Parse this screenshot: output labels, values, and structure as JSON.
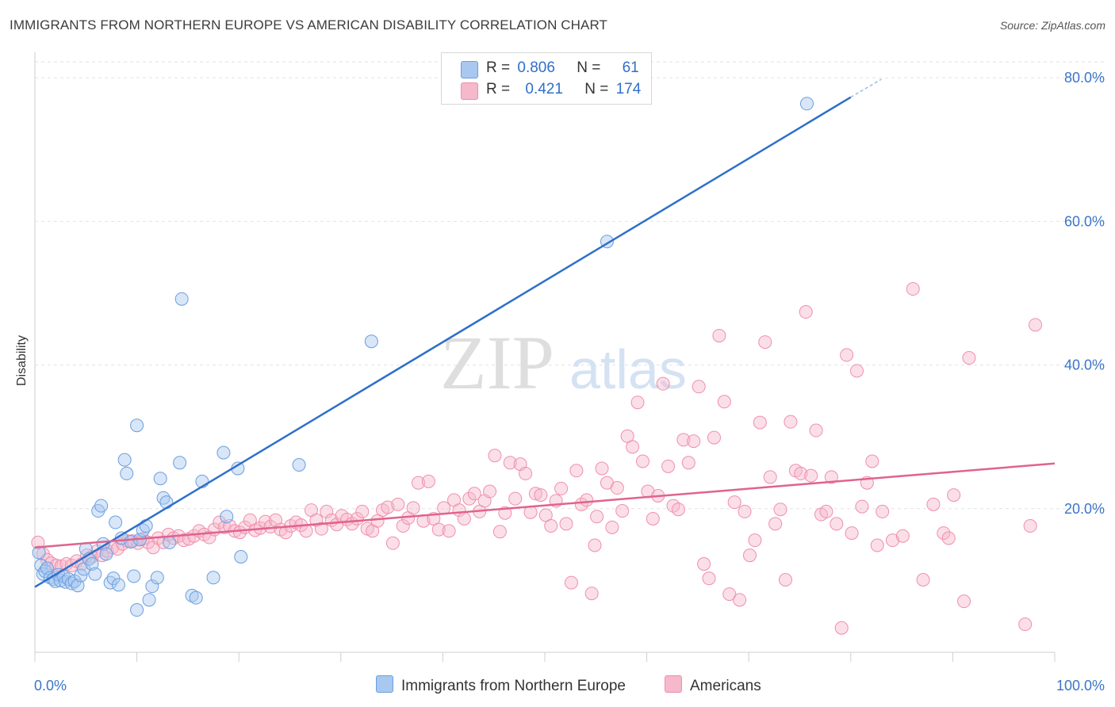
{
  "header": {
    "title": "IMMIGRANTS FROM NORTHERN EUROPE VS AMERICAN DISABILITY CORRELATION CHART",
    "source": "Source: ZipAtlas.com"
  },
  "watermark": {
    "zip": "ZIP",
    "atlas": "atlas"
  },
  "legend": {
    "rows": [
      {
        "r_label": "R =",
        "r_value": "0.806",
        "n_label": "N =",
        "n_value": "61",
        "color": "#a8c8f0"
      },
      {
        "r_label": "R =",
        "r_value": "0.421",
        "n_label": "N =",
        "n_value": "174",
        "color": "#f6b8cb"
      }
    ]
  },
  "chart_data": {
    "type": "scatter",
    "title": "IMMIGRANTS FROM NORTHERN EUROPE VS AMERICAN DISABILITY CORRELATION CHART",
    "xlabel": "",
    "ylabel": "Disability",
    "xlim": [
      0,
      100
    ],
    "ylim": [
      0,
      83
    ],
    "x_tick_labels": [
      "0.0%",
      "100.0%"
    ],
    "y_ticks": [
      20,
      40,
      60,
      80
    ],
    "y_tick_labels": [
      "20.0%",
      "40.0%",
      "60.0%",
      "80.0%"
    ],
    "grid": true,
    "legend_position": "top-center",
    "series": [
      {
        "name": "Immigrants from Northern Europe",
        "color": "#6a9fe0",
        "fill": "#a8c8f0",
        "line_color": "#2f6fc9",
        "trend": {
          "x0": 0,
          "y0": 9.1,
          "x1": 80,
          "y1": 77.3,
          "dash_to_x": 83,
          "dash_to_y": 79.8
        },
        "points": [
          [
            0.4,
            13.9
          ],
          [
            0.6,
            12.1
          ],
          [
            0.8,
            10.9
          ],
          [
            1.0,
            11.3
          ],
          [
            1.2,
            11.7
          ],
          [
            1.5,
            10.4
          ],
          [
            1.8,
            10.2
          ],
          [
            2.0,
            9.9
          ],
          [
            2.3,
            10.8
          ],
          [
            2.5,
            10.0
          ],
          [
            2.8,
            10.6
          ],
          [
            3.0,
            9.8
          ],
          [
            3.3,
            10.2
          ],
          [
            3.6,
            9.6
          ],
          [
            3.9,
            9.9
          ],
          [
            4.2,
            9.3
          ],
          [
            4.5,
            10.7
          ],
          [
            4.8,
            11.6
          ],
          [
            5.0,
            14.4
          ],
          [
            5.3,
            13.0
          ],
          [
            5.6,
            12.3
          ],
          [
            5.9,
            10.9
          ],
          [
            6.2,
            19.7
          ],
          [
            6.5,
            20.4
          ],
          [
            6.7,
            15.1
          ],
          [
            7.0,
            13.7
          ],
          [
            7.4,
            9.7
          ],
          [
            7.7,
            10.3
          ],
          [
            7.9,
            18.1
          ],
          [
            8.2,
            9.4
          ],
          [
            8.5,
            15.9
          ],
          [
            8.8,
            26.8
          ],
          [
            9.0,
            24.9
          ],
          [
            9.4,
            15.4
          ],
          [
            9.7,
            10.6
          ],
          [
            10.0,
            31.6
          ],
          [
            10.3,
            15.7
          ],
          [
            10.6,
            17.0
          ],
          [
            10.9,
            17.6
          ],
          [
            11.2,
            7.3
          ],
          [
            11.5,
            9.2
          ],
          [
            12.3,
            24.2
          ],
          [
            12.6,
            21.5
          ],
          [
            12.9,
            20.9
          ],
          [
            13.2,
            15.3
          ],
          [
            14.2,
            26.4
          ],
          [
            14.4,
            49.2
          ],
          [
            15.4,
            7.9
          ],
          [
            15.8,
            7.6
          ],
          [
            16.4,
            23.8
          ],
          [
            17.5,
            10.4
          ],
          [
            18.5,
            27.8
          ],
          [
            18.8,
            18.9
          ],
          [
            19.9,
            25.6
          ],
          [
            20.2,
            13.3
          ],
          [
            25.9,
            26.1
          ],
          [
            33.0,
            43.3
          ],
          [
            56.1,
            57.2
          ],
          [
            75.7,
            76.4
          ],
          [
            10.0,
            5.9
          ],
          [
            12.0,
            10.4
          ]
        ]
      },
      {
        "name": "Americans",
        "color": "#ef8fab",
        "fill": "#f6b8cb",
        "line_color": "#e0638e",
        "trend": {
          "x0": 0,
          "y0": 14.6,
          "x1": 100,
          "y1": 26.3
        },
        "points": [
          [
            0.3,
            15.3
          ],
          [
            0.8,
            13.7
          ],
          [
            1.2,
            12.9
          ],
          [
            1.6,
            12.4
          ],
          [
            2.1,
            12.1
          ],
          [
            2.6,
            12.0
          ],
          [
            3.1,
            12.3
          ],
          [
            3.6,
            12.1
          ],
          [
            4.1,
            12.7
          ],
          [
            4.6,
            12.3
          ],
          [
            5.1,
            13.5
          ],
          [
            5.6,
            13.3
          ],
          [
            6.1,
            14.1
          ],
          [
            6.6,
            13.5
          ],
          [
            7.1,
            14.1
          ],
          [
            7.6,
            14.6
          ],
          [
            8.1,
            14.4
          ],
          [
            8.6,
            15.1
          ],
          [
            9.1,
            15.5
          ],
          [
            9.6,
            15.5
          ],
          [
            10.1,
            15.2
          ],
          [
            10.6,
            15.8
          ],
          [
            11.1,
            15.3
          ],
          [
            11.6,
            14.6
          ],
          [
            12.1,
            15.9
          ],
          [
            12.6,
            15.3
          ],
          [
            13.1,
            16.4
          ],
          [
            13.6,
            15.9
          ],
          [
            14.1,
            16.2
          ],
          [
            14.6,
            15.6
          ],
          [
            15.1,
            15.8
          ],
          [
            15.6,
            16.2
          ],
          [
            16.1,
            16.9
          ],
          [
            16.6,
            16.4
          ],
          [
            17.1,
            16.0
          ],
          [
            17.6,
            17.1
          ],
          [
            18.1,
            18.1
          ],
          [
            18.6,
            17.4
          ],
          [
            19.1,
            17.6
          ],
          [
            19.6,
            16.9
          ],
          [
            20.1,
            16.7
          ],
          [
            20.6,
            17.4
          ],
          [
            21.1,
            18.4
          ],
          [
            21.6,
            17.0
          ],
          [
            22.1,
            17.3
          ],
          [
            22.6,
            18.2
          ],
          [
            23.1,
            17.5
          ],
          [
            23.6,
            18.4
          ],
          [
            24.1,
            17.1
          ],
          [
            24.6,
            16.7
          ],
          [
            25.1,
            17.6
          ],
          [
            25.6,
            18.1
          ],
          [
            26.1,
            17.7
          ],
          [
            26.6,
            16.9
          ],
          [
            27.1,
            19.8
          ],
          [
            27.6,
            18.4
          ],
          [
            28.1,
            17.2
          ],
          [
            28.6,
            19.6
          ],
          [
            29.1,
            18.4
          ],
          [
            29.6,
            17.8
          ],
          [
            30.1,
            19.0
          ],
          [
            30.6,
            18.5
          ],
          [
            31.1,
            17.9
          ],
          [
            31.6,
            18.6
          ],
          [
            32.1,
            19.6
          ],
          [
            32.6,
            17.2
          ],
          [
            33.1,
            16.9
          ],
          [
            33.6,
            18.3
          ],
          [
            34.1,
            19.8
          ],
          [
            34.6,
            20.2
          ],
          [
            35.1,
            15.2
          ],
          [
            35.6,
            20.6
          ],
          [
            36.1,
            17.6
          ],
          [
            36.6,
            18.7
          ],
          [
            37.1,
            20.1
          ],
          [
            37.6,
            23.6
          ],
          [
            38.1,
            18.3
          ],
          [
            38.6,
            23.8
          ],
          [
            39.1,
            18.6
          ],
          [
            39.6,
            17.1
          ],
          [
            40.1,
            20.1
          ],
          [
            40.6,
            16.9
          ],
          [
            41.1,
            21.2
          ],
          [
            41.6,
            19.8
          ],
          [
            42.1,
            18.6
          ],
          [
            42.6,
            21.4
          ],
          [
            43.1,
            22.1
          ],
          [
            43.6,
            19.6
          ],
          [
            44.1,
            21.1
          ],
          [
            44.6,
            22.4
          ],
          [
            45.1,
            27.4
          ],
          [
            45.6,
            16.8
          ],
          [
            46.1,
            19.4
          ],
          [
            46.6,
            26.4
          ],
          [
            47.1,
            21.4
          ],
          [
            47.6,
            26.2
          ],
          [
            48.1,
            24.9
          ],
          [
            48.6,
            19.5
          ],
          [
            49.1,
            22.1
          ],
          [
            49.6,
            21.9
          ],
          [
            50.1,
            19.1
          ],
          [
            50.6,
            17.6
          ],
          [
            51.1,
            21.1
          ],
          [
            51.6,
            22.8
          ],
          [
            52.1,
            17.9
          ],
          [
            52.6,
            9.7
          ],
          [
            53.1,
            25.3
          ],
          [
            53.6,
            20.6
          ],
          [
            54.1,
            21.2
          ],
          [
            54.6,
            8.2
          ],
          [
            54.9,
            14.9
          ],
          [
            55.1,
            18.9
          ],
          [
            55.6,
            25.6
          ],
          [
            56.1,
            23.6
          ],
          [
            56.6,
            17.4
          ],
          [
            57.1,
            22.9
          ],
          [
            57.6,
            19.7
          ],
          [
            58.1,
            30.1
          ],
          [
            58.6,
            28.6
          ],
          [
            59.1,
            34.8
          ],
          [
            59.6,
            26.6
          ],
          [
            60.1,
            22.4
          ],
          [
            60.6,
            18.6
          ],
          [
            61.1,
            21.8
          ],
          [
            61.6,
            37.4
          ],
          [
            62.1,
            25.9
          ],
          [
            62.6,
            20.4
          ],
          [
            63.1,
            19.9
          ],
          [
            63.6,
            29.6
          ],
          [
            64.1,
            26.4
          ],
          [
            64.6,
            29.4
          ],
          [
            65.1,
            37.0
          ],
          [
            65.6,
            12.3
          ],
          [
            66.1,
            10.3
          ],
          [
            66.6,
            29.9
          ],
          [
            67.1,
            44.1
          ],
          [
            67.6,
            34.9
          ],
          [
            68.1,
            8.1
          ],
          [
            68.6,
            20.9
          ],
          [
            69.1,
            7.3
          ],
          [
            69.6,
            19.6
          ],
          [
            70.1,
            13.5
          ],
          [
            70.6,
            15.6
          ],
          [
            71.1,
            32.0
          ],
          [
            71.6,
            43.2
          ],
          [
            72.1,
            24.4
          ],
          [
            72.6,
            17.9
          ],
          [
            73.1,
            19.9
          ],
          [
            73.6,
            10.1
          ],
          [
            74.1,
            32.1
          ],
          [
            74.6,
            25.3
          ],
          [
            75.1,
            24.9
          ],
          [
            75.6,
            47.4
          ],
          [
            76.1,
            24.6
          ],
          [
            76.6,
            30.9
          ],
          [
            77.1,
            19.2
          ],
          [
            77.6,
            19.6
          ],
          [
            78.1,
            24.4
          ],
          [
            78.6,
            17.9
          ],
          [
            79.1,
            3.4
          ],
          [
            79.6,
            41.4
          ],
          [
            80.1,
            16.6
          ],
          [
            80.6,
            39.2
          ],
          [
            81.1,
            20.3
          ],
          [
            81.6,
            23.6
          ],
          [
            82.1,
            26.6
          ],
          [
            82.6,
            14.9
          ],
          [
            83.1,
            19.6
          ],
          [
            84.1,
            15.6
          ],
          [
            85.1,
            16.2
          ],
          [
            86.1,
            50.6
          ],
          [
            87.1,
            10.1
          ],
          [
            88.1,
            20.6
          ],
          [
            89.1,
            16.6
          ],
          [
            89.6,
            15.9
          ],
          [
            90.1,
            21.9
          ],
          [
            91.1,
            7.1
          ],
          [
            91.6,
            41.0
          ],
          [
            97.1,
            3.9
          ],
          [
            97.6,
            17.6
          ],
          [
            98.1,
            45.6
          ]
        ]
      }
    ]
  },
  "bottom_legend": {
    "items": [
      {
        "label": "Immigrants from Northern Europe",
        "color": "#a8c8f0"
      },
      {
        "label": "Americans",
        "color": "#f6b8cb"
      }
    ]
  }
}
